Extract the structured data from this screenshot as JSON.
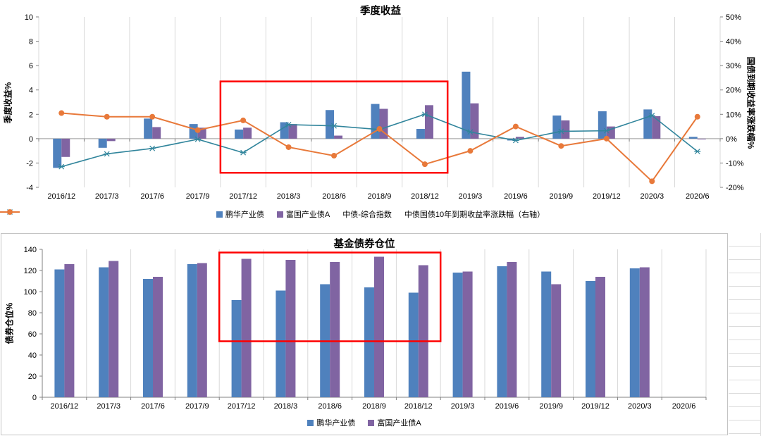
{
  "colors": {
    "bar_blue": "#4f81bd",
    "bar_purple": "#8064a2",
    "line_teal": "#31859c",
    "line_orange": "#e8793a",
    "highlight_red": "#fe0000",
    "gridline": "#d9d9d9",
    "axis": "#808080"
  },
  "chart_data": [
    {
      "type": "bar-line-combo",
      "title": "季度收益",
      "ylabel_left": "季度收益%",
      "ylabel_right": "国债到期收益率涨跌幅%",
      "ylim_left": [
        -4,
        10
      ],
      "ylim_right_percent": [
        -20,
        50
      ],
      "y_left_ticks": [
        10,
        8,
        6,
        4,
        2,
        0,
        -2,
        -4
      ],
      "y_right_tick_labels": [
        "50%",
        "40%",
        "30%",
        "20%",
        "10%",
        "0%",
        "-10%",
        "-20%"
      ],
      "categories": [
        "2016/12",
        "2017/3",
        "2017/6",
        "2017/9",
        "2017/12",
        "2018/3",
        "2018/6",
        "2018/9",
        "2018/12",
        "2019/3",
        "2019/6",
        "2019/9",
        "2019/12",
        "2020/3",
        "2020/6"
      ],
      "series": [
        {
          "name": "鹏华产业债",
          "type": "bar",
          "axis": "left",
          "color": "#4f81bd",
          "values": [
            -2.4,
            -0.75,
            1.65,
            1.2,
            0.75,
            1.35,
            2.35,
            2.85,
            0.8,
            5.5,
            -0.15,
            1.9,
            2.25,
            2.4,
            0.15
          ]
        },
        {
          "name": "富国产业债A",
          "type": "bar",
          "axis": "left",
          "color": "#8064a2",
          "values": [
            -1.5,
            -0.2,
            0.95,
            0.9,
            0.9,
            1.2,
            0.25,
            2.45,
            2.75,
            2.9,
            0.15,
            1.5,
            1.0,
            1.85,
            -0.05
          ]
        },
        {
          "name": "中债-综合指数",
          "type": "line",
          "marker": "x",
          "axis": "left",
          "color": "#31859c",
          "values": [
            -2.3,
            -1.25,
            -0.8,
            -0.05,
            -1.15,
            1.15,
            1.05,
            0.75,
            2.0,
            0.55,
            -0.15,
            0.6,
            0.65,
            1.9,
            -1.05
          ]
        },
        {
          "name": "中债国债10年到期收益率涨跌幅（右轴）",
          "type": "line",
          "marker": "circle",
          "axis": "right",
          "color": "#e8793a",
          "values": [
            10.5,
            9,
            9,
            3.5,
            7.5,
            -3.5,
            -7,
            4,
            -10.5,
            -5,
            5,
            -3,
            0,
            -17.5,
            9
          ]
        }
      ],
      "highlight_box": {
        "from_category": "2017/12",
        "to_category": "2018/12",
        "y_top_value": 4.7,
        "y_bottom_value": -2.8
      },
      "legend_position": "bottom",
      "grid": "vertical-only"
    },
    {
      "type": "bar",
      "title": "基金债券仓位",
      "ylabel": "债券仓位%",
      "ylim": [
        0,
        140
      ],
      "y_ticks": [
        0,
        20,
        40,
        60,
        80,
        100,
        120,
        140
      ],
      "categories": [
        "2016/12",
        "2017/3",
        "2017/6",
        "2017/9",
        "2017/12",
        "2018/3",
        "2018/6",
        "2018/9",
        "2018/12",
        "2019/3",
        "2019/6",
        "2019/9",
        "2019/12",
        "2020/3",
        "2020/6"
      ],
      "series": [
        {
          "name": "鹏华产业债",
          "color": "#4f81bd",
          "values": [
            121,
            123,
            112,
            126,
            92,
            101,
            107,
            104,
            99,
            118,
            124,
            119,
            110,
            122,
            null
          ]
        },
        {
          "name": "富国产业债A",
          "color": "#8064a2",
          "values": [
            126,
            129,
            114,
            127,
            131,
            130,
            128,
            133,
            125,
            119,
            128,
            107,
            114,
            123,
            null
          ]
        }
      ],
      "highlight_box": {
        "from_category": "2017/12",
        "to_category": "2018/12",
        "y_top_value": 137,
        "y_bottom_value": 53
      },
      "legend_position": "bottom",
      "grid": "vertical-only"
    }
  ]
}
